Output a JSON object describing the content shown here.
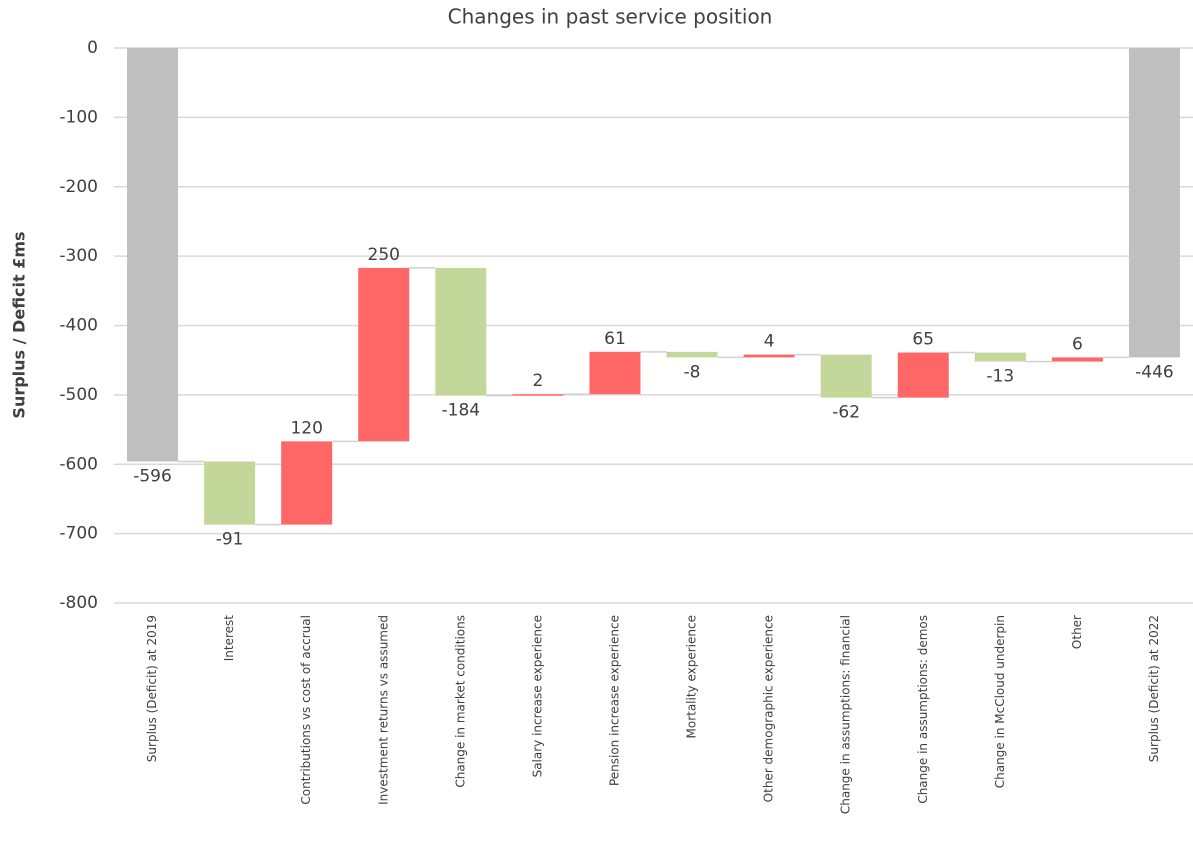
{
  "chart_data": {
    "type": "waterfall",
    "title": "Changes in past service position",
    "y_label": "Surplus / Deficit £ms",
    "categories": [
      "Surplus (Deficit) at 2019",
      "Interest",
      "Contributions vs cost of accrual",
      "Investment returns vs assumed",
      "Change in market conditions",
      "Salary increase experience",
      "Pension increase experience",
      "Mortality experience",
      "Other demographic experience",
      "Change in assumptions: financial",
      "Change in assumptions: demos",
      "Change in McCloud underpin",
      "Other",
      "Surplus (Deficit) at 2022"
    ],
    "values": [
      -596,
      -91,
      120,
      250,
      -184,
      2,
      61,
      -8,
      4,
      -62,
      65,
      -13,
      6,
      -446
    ],
    "measures": [
      "total",
      "relative",
      "relative",
      "relative",
      "relative",
      "relative",
      "relative",
      "relative",
      "relative",
      "relative",
      "relative",
      "relative",
      "relative",
      "total"
    ],
    "colors": {
      "increase": "#ff6666",
      "decrease": "#c4d79b",
      "total": "#bfbfbf"
    },
    "ylim": [
      -800,
      0
    ],
    "yticks": [
      0,
      -100,
      -200,
      -300,
      -400,
      -500,
      -600,
      -700,
      -800
    ],
    "grid": true
  }
}
